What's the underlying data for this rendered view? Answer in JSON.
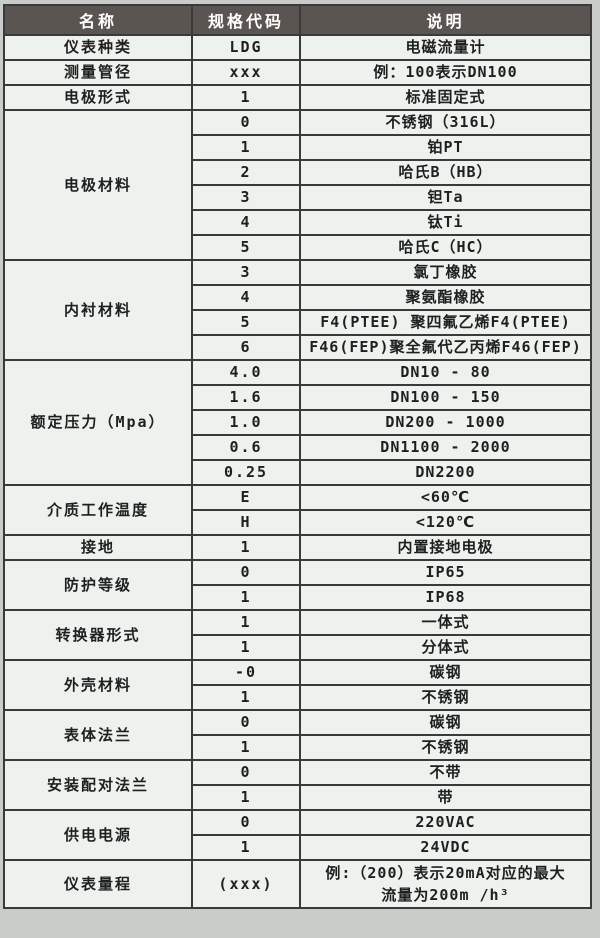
{
  "colors": {
    "page_bg": "#c9ccc9",
    "header_bg": "#5b5551",
    "header_text": "#ffffff",
    "cell_bg": "#eef2ee",
    "border": "#3a3a3a",
    "text": "#1f1f1f"
  },
  "table": {
    "header": {
      "col1": "名称",
      "col2": "规格代码",
      "col3": "说明"
    },
    "sections": [
      {
        "name": "仪表种类",
        "rows": [
          {
            "code": "LDG",
            "desc": "电磁流量计"
          }
        ]
      },
      {
        "name": "测量管径",
        "rows": [
          {
            "code": "xxx",
            "desc": "例：100表示DN100"
          }
        ]
      },
      {
        "name": "电极形式",
        "rows": [
          {
            "code": "1",
            "desc": "标准固定式"
          }
        ]
      },
      {
        "name": "电极材料",
        "rows": [
          {
            "code": "0",
            "desc": "不锈钢（316L）"
          },
          {
            "code": "1",
            "desc": "铂PT"
          },
          {
            "code": "2",
            "desc": "哈氏B（HB）"
          },
          {
            "code": "3",
            "desc": "钽Ta"
          },
          {
            "code": "4",
            "desc": "钛Ti"
          },
          {
            "code": "5",
            "desc": "哈氏C（HC）"
          }
        ]
      },
      {
        "name": "内衬材料",
        "rows": [
          {
            "code": "3",
            "desc": "氯丁橡胶"
          },
          {
            "code": "4",
            "desc": "聚氨酯橡胶"
          },
          {
            "code": "5",
            "desc": "F4(PTEE) 聚四氟乙烯F4(PTEE)"
          },
          {
            "code": "6",
            "desc": "F46(FEP)聚全氟代乙丙烯F46(FEP)"
          }
        ]
      },
      {
        "name": "额定压力（Mpa）",
        "rows": [
          {
            "code": "4.0",
            "desc": "DN10 - 80"
          },
          {
            "code": "1.6",
            "desc": "DN100 - 150"
          },
          {
            "code": "1.0",
            "desc": "DN200 - 1000"
          },
          {
            "code": "0.6",
            "desc": "DN1100 - 2000"
          },
          {
            "code": "0.25",
            "desc": "DN2200"
          }
        ]
      },
      {
        "name": "介质工作温度",
        "rows": [
          {
            "code": "E",
            "desc": "<60℃"
          },
          {
            "code": "H",
            "desc": "<120℃"
          }
        ]
      },
      {
        "name": "接地",
        "rows": [
          {
            "code": "1",
            "desc": "内置接地电极"
          }
        ]
      },
      {
        "name": "防护等级",
        "rows": [
          {
            "code": "0",
            "desc": "IP65"
          },
          {
            "code": "1",
            "desc": "IP68"
          }
        ]
      },
      {
        "name": "转换器形式",
        "rows": [
          {
            "code": "1",
            "desc": "一体式"
          },
          {
            "code": "1",
            "desc": "分体式"
          }
        ]
      },
      {
        "name": "外壳材料",
        "rows": [
          {
            "code": "-0",
            "desc": "碳钢"
          },
          {
            "code": "1",
            "desc": "不锈钢"
          }
        ]
      },
      {
        "name": "表体法兰",
        "rows": [
          {
            "code": "0",
            "desc": "碳钢"
          },
          {
            "code": "1",
            "desc": "不锈钢"
          }
        ]
      },
      {
        "name": "安装配对法兰",
        "rows": [
          {
            "code": "0",
            "desc": "不带"
          },
          {
            "code": "1",
            "desc": "带"
          }
        ]
      },
      {
        "name": "供电电源",
        "rows": [
          {
            "code": "0",
            "desc": "220VAC"
          },
          {
            "code": "1",
            "desc": "24VDC"
          }
        ]
      },
      {
        "name": "仪表量程",
        "tall": true,
        "rows": [
          {
            "code": "(xxx)",
            "desc_lines": [
              "例:（200）表示20mA对应的最大",
              "流量为200m /h³"
            ]
          }
        ]
      }
    ]
  }
}
